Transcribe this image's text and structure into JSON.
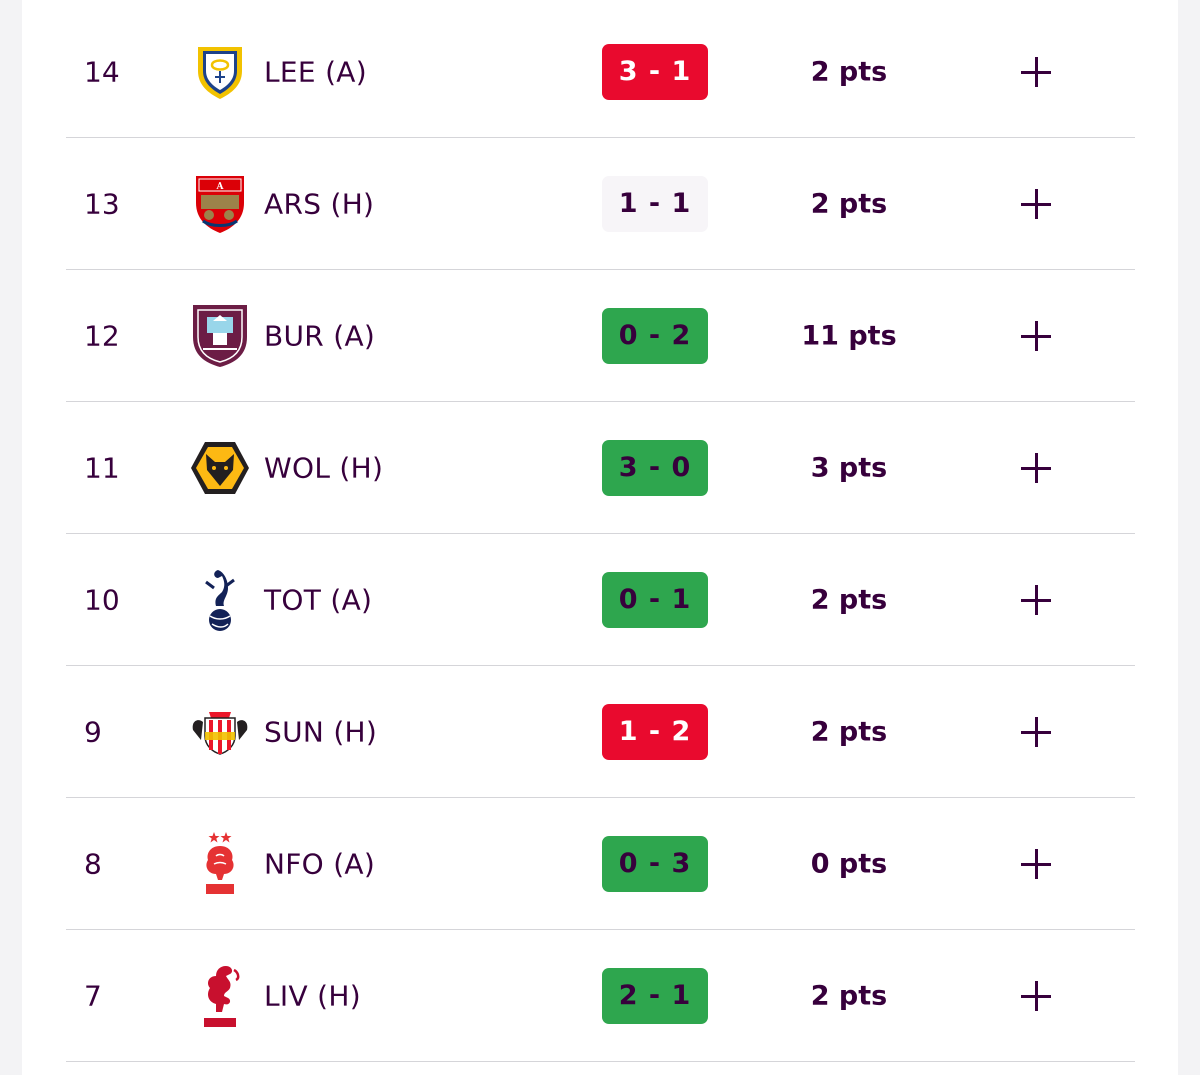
{
  "colors": {
    "brand_purple": "#37003c",
    "loss": "#e90a2e",
    "draw": "#f7f5f8",
    "win": "#2ea64e"
  },
  "rows": [
    {
      "gameweek": "14",
      "team": "LEE (A)",
      "crest": "leeds-crest-icon",
      "score": "3 - 1",
      "result": "loss",
      "points": "2 pts",
      "expand_icon": "plus-icon"
    },
    {
      "gameweek": "13",
      "team": "ARS (H)",
      "crest": "arsenal-crest-icon",
      "score": "1 - 1",
      "result": "draw",
      "points": "2 pts",
      "expand_icon": "plus-icon"
    },
    {
      "gameweek": "12",
      "team": "BUR (A)",
      "crest": "burnley-crest-icon",
      "score": "0 - 2",
      "result": "win",
      "points": "11 pts",
      "expand_icon": "plus-icon"
    },
    {
      "gameweek": "11",
      "team": "WOL (H)",
      "crest": "wolves-crest-icon",
      "score": "3 - 0",
      "result": "win",
      "points": "3 pts",
      "expand_icon": "plus-icon"
    },
    {
      "gameweek": "10",
      "team": "TOT (A)",
      "crest": "spurs-crest-icon",
      "score": "0 - 1",
      "result": "win",
      "points": "2 pts",
      "expand_icon": "plus-icon"
    },
    {
      "gameweek": "9",
      "team": "SUN (H)",
      "crest": "sunderland-crest-icon",
      "score": "1 - 2",
      "result": "loss",
      "points": "2 pts",
      "expand_icon": "plus-icon"
    },
    {
      "gameweek": "8",
      "team": "NFO (A)",
      "crest": "forest-crest-icon",
      "score": "0 - 3",
      "result": "win",
      "points": "0 pts",
      "expand_icon": "plus-icon"
    },
    {
      "gameweek": "7",
      "team": "LIV (H)",
      "crest": "liverpool-crest-icon",
      "score": "2 - 1",
      "result": "win",
      "points": "2 pts",
      "expand_icon": "plus-icon"
    }
  ]
}
